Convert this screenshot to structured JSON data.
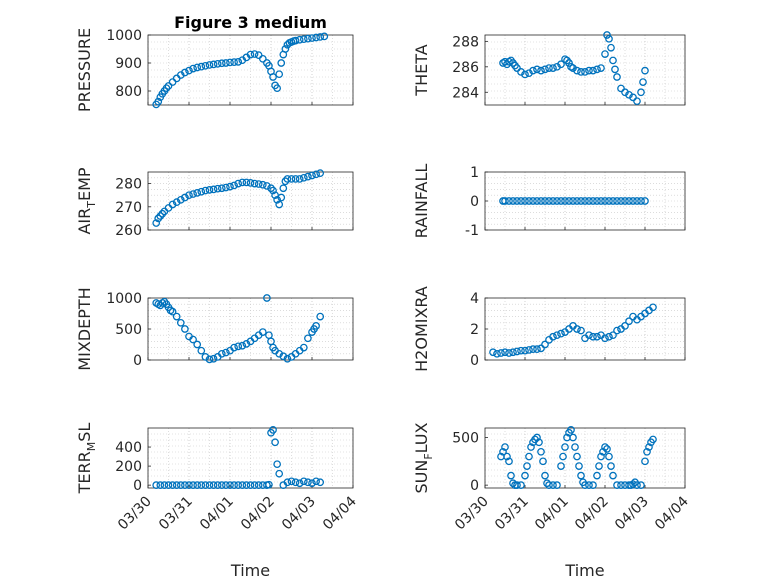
{
  "figure_title": "Figure 3 medium",
  "colors": {
    "marker": "#0072BD",
    "axis": "#262626",
    "grid": "#c8c8c8"
  },
  "chart_data": [
    {
      "type": "scatter",
      "title": "Figure 3 medium",
      "ylabel": "PRESSURE",
      "ylabel_sub": "",
      "xlim": [
        0,
        5
      ],
      "ylim": [
        750,
        1000
      ],
      "yticks": [
        800,
        900,
        1000
      ],
      "xticklabels": [
        "03/30",
        "03/31",
        "04/01",
        "04/02",
        "04/03",
        "04/04"
      ],
      "show_xticklabels": false,
      "xlabel": "",
      "series": [
        {
          "x": [
            0.2,
            0.25,
            0.3,
            0.35,
            0.4,
            0.45,
            0.5,
            0.6,
            0.7,
            0.8,
            0.9,
            1.0,
            1.1,
            1.2,
            1.3,
            1.4,
            1.5,
            1.6,
            1.7,
            1.8,
            1.9,
            2.0,
            2.1,
            2.2,
            2.3,
            2.4,
            2.5,
            2.6,
            2.7,
            2.8,
            2.9,
            2.95,
            3.0,
            3.05,
            3.1,
            3.15,
            3.2,
            3.25,
            3.3,
            3.35,
            3.4,
            3.45,
            3.5,
            3.55,
            3.6,
            3.7,
            3.8,
            3.9,
            4.0,
            4.1,
            4.2,
            4.3
          ],
          "y": [
            752,
            762,
            778,
            790,
            800,
            810,
            818,
            832,
            845,
            857,
            866,
            873,
            880,
            884,
            887,
            890,
            893,
            895,
            897,
            899,
            900,
            902,
            903,
            904,
            910,
            920,
            930,
            932,
            928,
            915,
            900,
            890,
            870,
            850,
            820,
            810,
            860,
            900,
            930,
            950,
            965,
            972,
            975,
            978,
            980,
            983,
            985,
            987,
            989,
            991,
            993,
            995
          ]
        }
      ]
    },
    {
      "type": "scatter",
      "title": "",
      "ylabel": "THETA",
      "ylabel_sub": "",
      "xlim": [
        0,
        5
      ],
      "ylim": [
        283,
        288.5
      ],
      "yticks": [
        284,
        286,
        288
      ],
      "xticklabels": [
        "03/30",
        "03/31",
        "04/01",
        "04/02",
        "04/03",
        "04/04"
      ],
      "show_xticklabels": false,
      "xlabel": "",
      "series": [
        {
          "x": [
            0.45,
            0.5,
            0.55,
            0.6,
            0.65,
            0.7,
            0.75,
            0.8,
            0.9,
            1.0,
            1.1,
            1.2,
            1.3,
            1.4,
            1.5,
            1.6,
            1.7,
            1.8,
            1.9,
            2.0,
            2.05,
            2.1,
            2.15,
            2.2,
            2.3,
            2.4,
            2.5,
            2.6,
            2.7,
            2.8,
            2.9,
            3.0,
            3.05,
            3.1,
            3.15,
            3.2,
            3.25,
            3.3,
            3.4,
            3.5,
            3.6,
            3.7,
            3.8,
            3.9,
            3.95,
            4.0
          ],
          "y": [
            286.3,
            286.4,
            286.2,
            286.4,
            286.5,
            286.3,
            286.1,
            285.9,
            285.6,
            285.4,
            285.5,
            285.7,
            285.8,
            285.7,
            285.8,
            285.9,
            285.9,
            286.0,
            286.2,
            286.6,
            286.5,
            286.3,
            286.0,
            285.9,
            285.7,
            285.6,
            285.6,
            285.7,
            285.7,
            285.8,
            285.9,
            287.0,
            288.5,
            288.2,
            287.5,
            286.5,
            285.8,
            285.2,
            284.3,
            284.0,
            283.8,
            283.6,
            283.3,
            284.0,
            284.8,
            285.7
          ]
        }
      ]
    },
    {
      "type": "scatter",
      "title": "",
      "ylabel": "AIR",
      "ylabel_sub": "T",
      "ylabel_rest": "EMP",
      "xlim": [
        0,
        5
      ],
      "ylim": [
        260,
        285
      ],
      "yticks": [
        260,
        270,
        280
      ],
      "xticklabels": [
        "03/30",
        "03/31",
        "04/01",
        "04/02",
        "04/03",
        "04/04"
      ],
      "show_xticklabels": false,
      "xlabel": "",
      "series": [
        {
          "x": [
            0.2,
            0.25,
            0.3,
            0.35,
            0.4,
            0.5,
            0.6,
            0.7,
            0.8,
            0.9,
            1.0,
            1.1,
            1.2,
            1.3,
            1.4,
            1.5,
            1.6,
            1.7,
            1.8,
            1.9,
            2.0,
            2.1,
            2.2,
            2.3,
            2.4,
            2.5,
            2.6,
            2.7,
            2.8,
            2.9,
            3.0,
            3.05,
            3.1,
            3.15,
            3.2,
            3.25,
            3.3,
            3.35,
            3.4,
            3.5,
            3.6,
            3.7,
            3.8,
            3.9,
            4.0,
            4.1,
            4.2
          ],
          "y": [
            263,
            265,
            266,
            267,
            268,
            269.5,
            271,
            272,
            273,
            274,
            275,
            275.5,
            276,
            276.5,
            277,
            277.3,
            277.5,
            277.8,
            278,
            278.3,
            278.7,
            279.2,
            280,
            280.5,
            280.5,
            280.3,
            280,
            279.8,
            279.5,
            279,
            278,
            277,
            275,
            273,
            271,
            274,
            278,
            281,
            282,
            282,
            282,
            282,
            282.5,
            283,
            283.5,
            284,
            284.5
          ]
        }
      ]
    },
    {
      "type": "scatter",
      "title": "",
      "ylabel": "RAINFALL",
      "ylabel_sub": "",
      "xlim": [
        0,
        5
      ],
      "ylim": [
        -1,
        1
      ],
      "yticks": [
        -1,
        0,
        1
      ],
      "xticklabels": [
        "03/30",
        "03/31",
        "04/01",
        "04/02",
        "04/03",
        "04/04"
      ],
      "show_xticklabels": false,
      "xlabel": "",
      "series": [
        {
          "x": [
            0.45,
            0.5,
            0.6,
            0.7,
            0.8,
            0.9,
            1.0,
            1.1,
            1.2,
            1.3,
            1.4,
            1.5,
            1.6,
            1.7,
            1.8,
            1.9,
            2.0,
            2.1,
            2.2,
            2.3,
            2.4,
            2.5,
            2.6,
            2.7,
            2.8,
            2.9,
            3.0,
            3.1,
            3.2,
            3.3,
            3.4,
            3.5,
            3.6,
            3.7,
            3.8,
            3.9,
            4.0
          ],
          "y": [
            0,
            0,
            0,
            0,
            0,
            0,
            0,
            0,
            0,
            0,
            0,
            0,
            0,
            0,
            0,
            0,
            0,
            0,
            0,
            0,
            0,
            0,
            0,
            0,
            0,
            0,
            0,
            0,
            0,
            0,
            0,
            0,
            0,
            0,
            0,
            0,
            0
          ]
        }
      ]
    },
    {
      "type": "scatter",
      "title": "",
      "ylabel": "MIXDEPTH",
      "ylabel_sub": "",
      "xlim": [
        0,
        5
      ],
      "ylim": [
        0,
        1000
      ],
      "yticks": [
        0,
        500,
        1000
      ],
      "xticklabels": [
        "03/30",
        "03/31",
        "04/01",
        "04/02",
        "04/03",
        "04/04"
      ],
      "show_xticklabels": false,
      "xlabel": "",
      "series": [
        {
          "x": [
            0.2,
            0.25,
            0.3,
            0.35,
            0.4,
            0.45,
            0.5,
            0.55,
            0.6,
            0.7,
            0.8,
            0.9,
            1.0,
            1.1,
            1.2,
            1.3,
            1.4,
            1.5,
            1.6,
            1.7,
            1.8,
            1.9,
            2.0,
            2.1,
            2.2,
            2.3,
            2.4,
            2.5,
            2.6,
            2.7,
            2.8,
            2.9,
            2.95,
            3.0,
            3.05,
            3.1,
            3.2,
            3.3,
            3.4,
            3.5,
            3.6,
            3.7,
            3.8,
            3.9,
            4.0,
            4.05,
            4.1,
            4.2
          ],
          "y": [
            920,
            900,
            880,
            920,
            940,
            900,
            850,
            800,
            780,
            700,
            600,
            500,
            380,
            330,
            250,
            150,
            50,
            10,
            20,
            50,
            100,
            120,
            150,
            200,
            220,
            230,
            260,
            300,
            350,
            400,
            450,
            1000,
            400,
            300,
            200,
            150,
            100,
            60,
            20,
            50,
            100,
            150,
            200,
            350,
            450,
            500,
            550,
            700
          ]
        }
      ]
    },
    {
      "type": "scatter",
      "title": "",
      "ylabel": "H2OMIXRA",
      "ylabel_sub": "",
      "xlim": [
        0,
        5
      ],
      "ylim": [
        0,
        4
      ],
      "yticks": [
        0,
        2,
        4
      ],
      "xticklabels": [
        "03/30",
        "03/31",
        "04/01",
        "04/02",
        "04/03",
        "04/04"
      ],
      "show_xticklabels": false,
      "xlabel": "",
      "series": [
        {
          "x": [
            0.2,
            0.3,
            0.4,
            0.5,
            0.6,
            0.7,
            0.8,
            0.9,
            1.0,
            1.1,
            1.2,
            1.3,
            1.4,
            1.5,
            1.6,
            1.7,
            1.8,
            1.9,
            2.0,
            2.1,
            2.2,
            2.3,
            2.4,
            2.5,
            2.6,
            2.7,
            2.8,
            2.9,
            3.0,
            3.1,
            3.2,
            3.3,
            3.4,
            3.5,
            3.6,
            3.7,
            3.8,
            3.9,
            4.0,
            4.1,
            4.2
          ],
          "y": [
            0.5,
            0.4,
            0.45,
            0.5,
            0.45,
            0.5,
            0.55,
            0.6,
            0.6,
            0.65,
            0.7,
            0.7,
            0.75,
            1.0,
            1.3,
            1.5,
            1.6,
            1.7,
            1.8,
            2.0,
            2.2,
            2.0,
            1.9,
            1.4,
            1.6,
            1.5,
            1.5,
            1.6,
            1.4,
            1.5,
            1.6,
            1.9,
            2.0,
            2.2,
            2.5,
            2.8,
            2.6,
            2.8,
            3.0,
            3.2,
            3.4
          ]
        }
      ]
    },
    {
      "type": "scatter",
      "title": "",
      "ylabel": "TERR",
      "ylabel_sub": "M",
      "ylabel_rest": "SL",
      "xlim": [
        0,
        5
      ],
      "ylim": [
        -30,
        600
      ],
      "yticks": [
        0,
        200,
        400
      ],
      "xticklabels": [
        "03/30",
        "03/31",
        "04/01",
        "04/02",
        "04/03",
        "04/04"
      ],
      "show_xticklabels": true,
      "xlabel": "Time",
      "series": [
        {
          "x": [
            0.2,
            0.3,
            0.4,
            0.5,
            0.6,
            0.7,
            0.8,
            0.9,
            1.0,
            1.1,
            1.2,
            1.3,
            1.4,
            1.5,
            1.6,
            1.7,
            1.8,
            1.9,
            2.0,
            2.1,
            2.2,
            2.3,
            2.4,
            2.5,
            2.6,
            2.7,
            2.8,
            2.9,
            2.95,
            3.0,
            3.05,
            3.1,
            3.15,
            3.2,
            3.3,
            3.4,
            3.5,
            3.6,
            3.7,
            3.8,
            3.9,
            4.0,
            4.1,
            4.2
          ],
          "y": [
            0,
            0,
            0,
            0,
            0,
            0,
            0,
            0,
            0,
            0,
            0,
            0,
            0,
            0,
            0,
            0,
            0,
            0,
            0,
            0,
            0,
            0,
            0,
            0,
            0,
            0,
            0,
            0,
            5,
            550,
            580,
            450,
            220,
            120,
            0,
            30,
            40,
            30,
            20,
            40,
            30,
            20,
            40,
            30
          ]
        }
      ]
    },
    {
      "type": "scatter",
      "title": "",
      "ylabel": "SUN",
      "ylabel_sub": "F",
      "ylabel_rest": "LUX",
      "xlim": [
        0,
        5
      ],
      "ylim": [
        -30,
        600
      ],
      "yticks": [
        0,
        500
      ],
      "xticklabels": [
        "03/30",
        "03/31",
        "04/01",
        "04/02",
        "04/03",
        "04/04"
      ],
      "show_xticklabels": true,
      "xlabel": "Time",
      "series": [
        {
          "x": [
            0.4,
            0.45,
            0.5,
            0.55,
            0.6,
            0.65,
            0.7,
            0.75,
            0.8,
            0.9,
            1.0,
            1.05,
            1.1,
            1.15,
            1.2,
            1.25,
            1.3,
            1.35,
            1.4,
            1.45,
            1.5,
            1.55,
            1.6,
            1.7,
            1.8,
            1.9,
            1.95,
            2.0,
            2.05,
            2.1,
            2.15,
            2.2,
            2.25,
            2.3,
            2.35,
            2.4,
            2.45,
            2.5,
            2.6,
            2.7,
            2.8,
            2.85,
            2.9,
            2.95,
            3.0,
            3.05,
            3.1,
            3.15,
            3.2,
            3.3,
            3.4,
            3.5,
            3.6,
            3.65,
            3.7,
            3.75,
            3.8,
            3.9,
            4.0,
            4.05,
            4.1,
            4.15,
            4.2
          ],
          "y": [
            300,
            350,
            400,
            300,
            250,
            100,
            20,
            0,
            0,
            0,
            100,
            200,
            300,
            400,
            450,
            480,
            500,
            450,
            350,
            250,
            100,
            20,
            0,
            0,
            0,
            200,
            300,
            400,
            500,
            550,
            580,
            500,
            400,
            300,
            200,
            100,
            30,
            0,
            0,
            0,
            100,
            200,
            300,
            350,
            400,
            380,
            300,
            200,
            100,
            0,
            0,
            0,
            0,
            0,
            10,
            30,
            0,
            0,
            250,
            350,
            400,
            450,
            480
          ]
        }
      ]
    }
  ]
}
